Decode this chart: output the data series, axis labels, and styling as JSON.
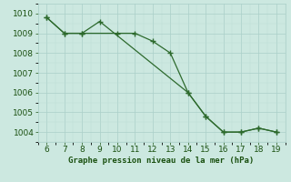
{
  "line1_x": [
    6,
    7,
    8,
    10,
    11,
    12,
    13,
    14,
    15,
    16,
    17,
    18,
    19
  ],
  "line1_y": [
    1009.8,
    1009.0,
    1009.0,
    1009.0,
    1009.0,
    1008.6,
    1008.0,
    1006.0,
    1004.8,
    1004.0,
    1004.0,
    1004.2,
    1004.0
  ],
  "line2_x": [
    6,
    7,
    8,
    9,
    14,
    15,
    16,
    17,
    18,
    19
  ],
  "line2_y": [
    1009.8,
    1009.0,
    1009.0,
    1009.6,
    1006.0,
    1004.8,
    1004.0,
    1004.0,
    1004.2,
    1004.0
  ],
  "line_color": "#2d6a2d",
  "bg_color": "#cce8e0",
  "grid_major_color": "#aacfc8",
  "grid_minor_color": "#bbddd6",
  "xlabel": "Graphe pression niveau de la mer (hPa)",
  "xlabel_color": "#1a5010",
  "tick_color": "#1a5010",
  "ylim": [
    1003.5,
    1010.5
  ],
  "xlim": [
    5.5,
    19.5
  ],
  "yticks": [
    1004,
    1005,
    1006,
    1007,
    1008,
    1009,
    1010
  ],
  "xticks": [
    6,
    7,
    8,
    9,
    10,
    11,
    12,
    13,
    14,
    15,
    16,
    17,
    18,
    19
  ],
  "tick_fontsize": 6.5,
  "xlabel_fontsize": 6.5,
  "marker": "+"
}
